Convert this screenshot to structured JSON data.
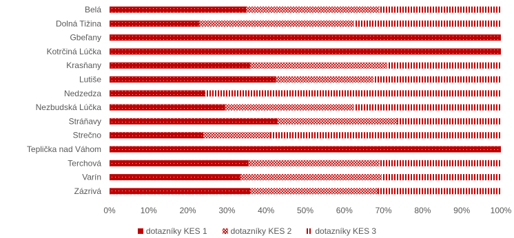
{
  "chart_data": {
    "type": "bar",
    "orientation": "horizontal",
    "stacked": "percent",
    "categories": [
      "Belá",
      "Dolná Tižina",
      "Gbeľany",
      "Kotrčiná Lúčka",
      "Krasňany",
      "Lutiše",
      "Nedzedza",
      "Nezbudská Lúčka",
      "Stráňavy",
      "Strečno",
      "Teplička nad Váhom",
      "Terchová",
      "Varín",
      "Zázrivá"
    ],
    "series": [
      {
        "name": "dotazníky KES 1",
        "color": "#c00000",
        "pattern": "solid-dotted",
        "values": [
          35,
          23,
          100,
          100,
          36,
          42.5,
          24.5,
          29.5,
          43,
          24,
          100,
          35.5,
          33.5,
          36
        ]
      },
      {
        "name": "dotazníky KES 2",
        "color": "#c00000",
        "pattern": "crosshatch",
        "values": [
          34,
          39.5,
          0,
          0,
          35,
          25,
          0,
          33,
          30.5,
          17,
          0,
          33.5,
          36,
          32.5
        ]
      },
      {
        "name": "dotazníky KES 3",
        "color": "#c00000",
        "pattern": "vertical-lines",
        "values": [
          31,
          37.5,
          0,
          0,
          29,
          32.5,
          75.5,
          37.5,
          26.5,
          59,
          0,
          31,
          30.5,
          31.5
        ]
      }
    ],
    "x_ticks": [
      "0%",
      "10%",
      "20%",
      "30%",
      "40%",
      "50%",
      "60%",
      "70%",
      "80%",
      "90%",
      "100%"
    ],
    "xlim": [
      0,
      100
    ],
    "grid": false,
    "legend_position": "bottom"
  }
}
